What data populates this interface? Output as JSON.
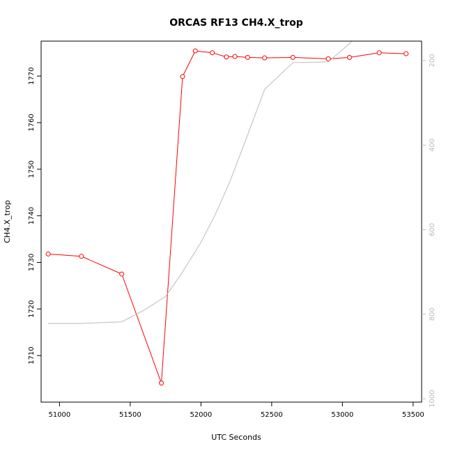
{
  "chart_data": {
    "type": "line",
    "title": "ORCAS RF13 CH4.X_trop",
    "xlabel": "UTC Seconds",
    "ylabel": "CH4.X_trop",
    "xlim": [
      50870,
      53560
    ],
    "ylim": [
      1700,
      1777.5
    ],
    "x_ticks": [
      51000,
      51500,
      52000,
      52500,
      53000,
      53500
    ],
    "y_ticks": [
      1710,
      1720,
      1730,
      1740,
      1750,
      1760,
      1770
    ],
    "y2lim": [
      1008,
      154
    ],
    "y2_ticks": [
      200,
      400,
      600,
      800,
      1000
    ],
    "grid": false,
    "series": [
      {
        "axis": "left",
        "color": "#ff0000",
        "marker": "open-circle",
        "points": [
          [
            50920,
            1731.8
          ],
          [
            51155,
            1731.3
          ],
          [
            51440,
            1727.5
          ],
          [
            51720,
            1704.1
          ],
          [
            51870,
            1769.9
          ],
          [
            51960,
            1775.4
          ],
          [
            52080,
            1775.0
          ],
          [
            52180,
            1774.1
          ],
          [
            52240,
            1774.2
          ],
          [
            52330,
            1774.0
          ],
          [
            52450,
            1773.9
          ],
          [
            52650,
            1774.0
          ],
          [
            52900,
            1773.7
          ],
          [
            53050,
            1774.0
          ],
          [
            53260,
            1775.0
          ],
          [
            53450,
            1774.8
          ]
        ]
      },
      {
        "axis": "right",
        "color": "#bbbbbb",
        "marker": "none",
        "points": [
          [
            50920,
            822
          ],
          [
            51150,
            822
          ],
          [
            51440,
            818
          ],
          [
            51600,
            790
          ],
          [
            51750,
            758
          ],
          [
            51870,
            700
          ],
          [
            52000,
            630
          ],
          [
            52100,
            565
          ],
          [
            52200,
            490
          ],
          [
            52320,
            385
          ],
          [
            52450,
            268
          ],
          [
            52650,
            205
          ],
          [
            52900,
            203
          ],
          [
            53050,
            160
          ],
          [
            53100,
            140
          ]
        ]
      }
    ]
  }
}
